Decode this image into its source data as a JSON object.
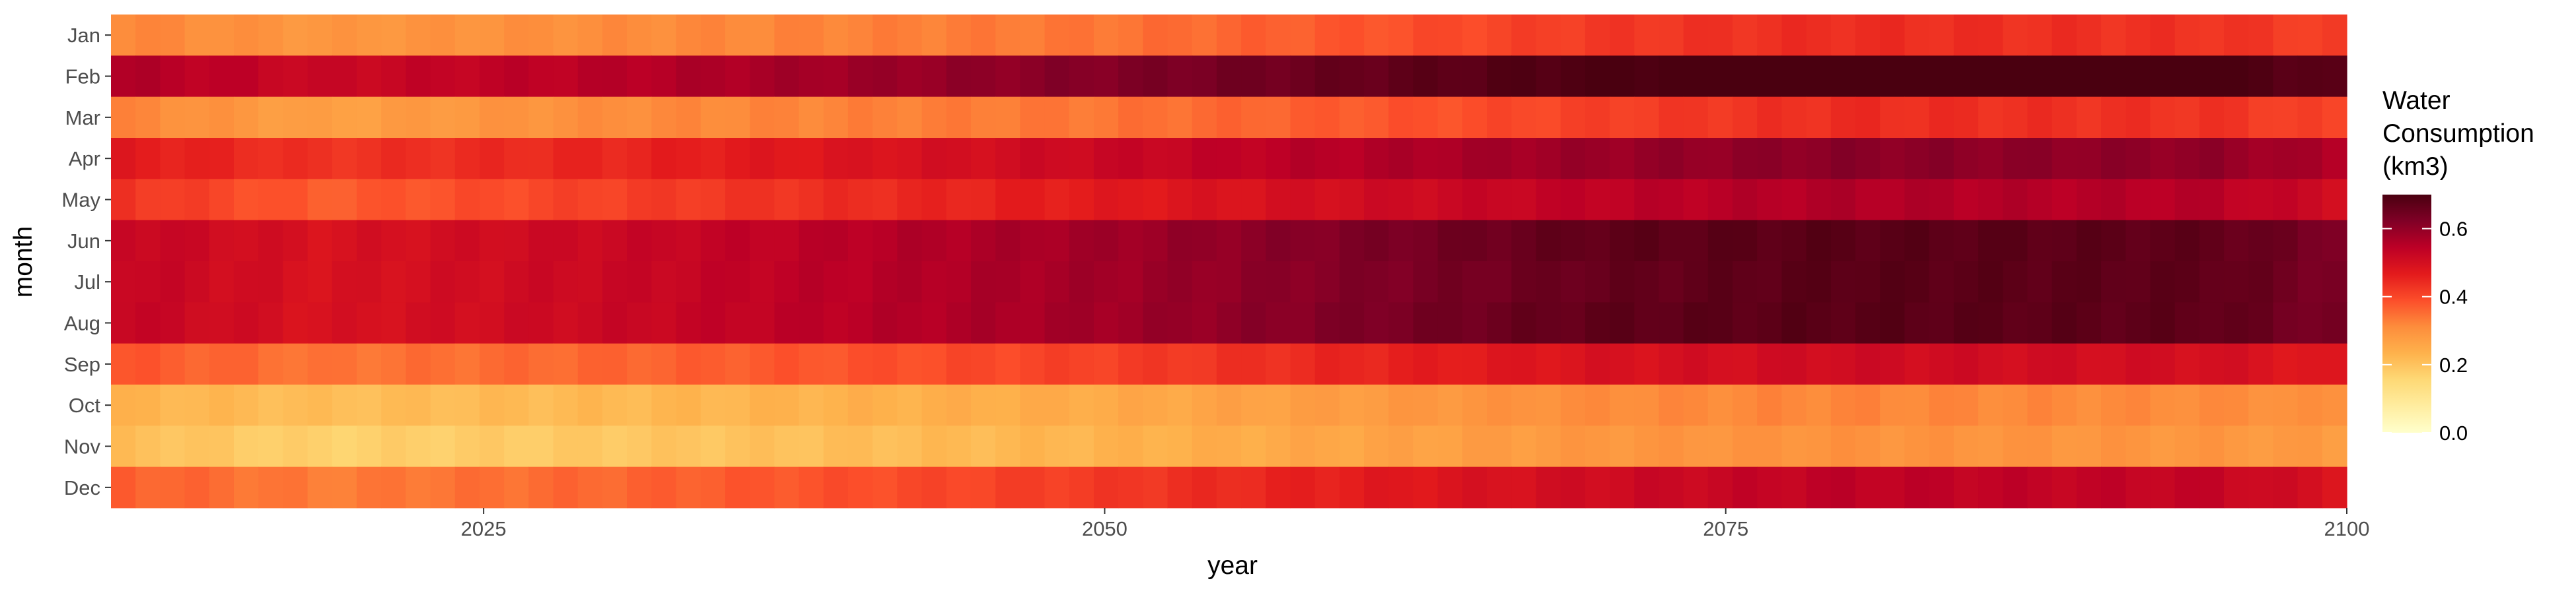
{
  "chart_data": {
    "type": "heatmap",
    "xlabel": "year",
    "ylabel": "month",
    "x_range": [
      2010,
      2100
    ],
    "x_ticks": [
      2025,
      2050,
      2075,
      2100
    ],
    "months": [
      "Jan",
      "Feb",
      "Mar",
      "Apr",
      "May",
      "Jun",
      "Jul",
      "Aug",
      "Sep",
      "Oct",
      "Nov",
      "Dec"
    ],
    "legend": {
      "title": [
        "Water",
        "Consumption",
        "(km3)"
      ],
      "ticks": [
        0.0,
        0.2,
        0.4,
        0.6
      ],
      "tick_labels": [
        "0.0",
        "0.2",
        "0.4",
        "0.6"
      ],
      "range": [
        0.0,
        0.7
      ],
      "placement": "right"
    },
    "colormap": [
      "#ffffcc",
      "#ffeda0",
      "#fed976",
      "#feb24c",
      "#fd8d3c",
      "#fc4e2a",
      "#e31a1c",
      "#bd0026",
      "#800026",
      "#4a0010"
    ],
    "grid": true,
    "row_profiles": [
      {
        "month": "Jan",
        "years": [
          2010,
          2018,
          2030,
          2050,
          2070,
          2080,
          2095,
          2100
        ],
        "values": [
          0.32,
          0.29,
          0.31,
          0.34,
          0.42,
          0.44,
          0.43,
          0.41
        ]
      },
      {
        "month": "Feb",
        "years": [
          2010,
          2018,
          2030,
          2050,
          2070,
          2080,
          2095,
          2100
        ],
        "values": [
          0.56,
          0.52,
          0.55,
          0.62,
          0.7,
          0.72,
          0.71,
          0.67
        ]
      },
      {
        "month": "Mar",
        "years": [
          2010,
          2018,
          2030,
          2050,
          2070,
          2080,
          2095,
          2100
        ],
        "values": [
          0.32,
          0.27,
          0.31,
          0.34,
          0.41,
          0.44,
          0.43,
          0.4
        ]
      },
      {
        "month": "Apr",
        "years": [
          2010,
          2018,
          2030,
          2050,
          2070,
          2080,
          2095,
          2100
        ],
        "values": [
          0.47,
          0.43,
          0.45,
          0.52,
          0.59,
          0.61,
          0.6,
          0.56
        ]
      },
      {
        "month": "May",
        "years": [
          2010,
          2018,
          2030,
          2050,
          2070,
          2080,
          2095,
          2100
        ],
        "values": [
          0.43,
          0.37,
          0.41,
          0.47,
          0.54,
          0.56,
          0.55,
          0.51
        ]
      },
      {
        "month": "Jun",
        "years": [
          2010,
          2018,
          2030,
          2050,
          2070,
          2080,
          2095,
          2100
        ],
        "values": [
          0.53,
          0.49,
          0.52,
          0.58,
          0.67,
          0.68,
          0.67,
          0.63
        ]
      },
      {
        "month": "Jul",
        "years": [
          2010,
          2018,
          2030,
          2050,
          2070,
          2080,
          2095,
          2100
        ],
        "values": [
          0.53,
          0.49,
          0.52,
          0.58,
          0.66,
          0.68,
          0.67,
          0.63
        ]
      },
      {
        "month": "Aug",
        "years": [
          2010,
          2018,
          2030,
          2050,
          2070,
          2080,
          2095,
          2100
        ],
        "values": [
          0.53,
          0.49,
          0.52,
          0.58,
          0.67,
          0.68,
          0.67,
          0.63
        ]
      },
      {
        "month": "Sep",
        "years": [
          2010,
          2018,
          2030,
          2050,
          2070,
          2080,
          2095,
          2100
        ],
        "values": [
          0.38,
          0.34,
          0.36,
          0.41,
          0.49,
          0.51,
          0.5,
          0.47
        ]
      },
      {
        "month": "Oct",
        "years": [
          2010,
          2018,
          2030,
          2050,
          2070,
          2080,
          2095,
          2100
        ],
        "values": [
          0.23,
          0.21,
          0.22,
          0.25,
          0.31,
          0.32,
          0.31,
          0.3
        ]
      },
      {
        "month": "Nov",
        "years": [
          2010,
          2018,
          2030,
          2050,
          2070,
          2080,
          2095,
          2100
        ],
        "values": [
          0.21,
          0.17,
          0.19,
          0.23,
          0.29,
          0.3,
          0.29,
          0.28
        ]
      },
      {
        "month": "Dec",
        "years": [
          2010,
          2018,
          2030,
          2050,
          2070,
          2080,
          2095,
          2100
        ],
        "values": [
          0.37,
          0.33,
          0.36,
          0.42,
          0.51,
          0.54,
          0.53,
          0.49
        ]
      }
    ]
  }
}
